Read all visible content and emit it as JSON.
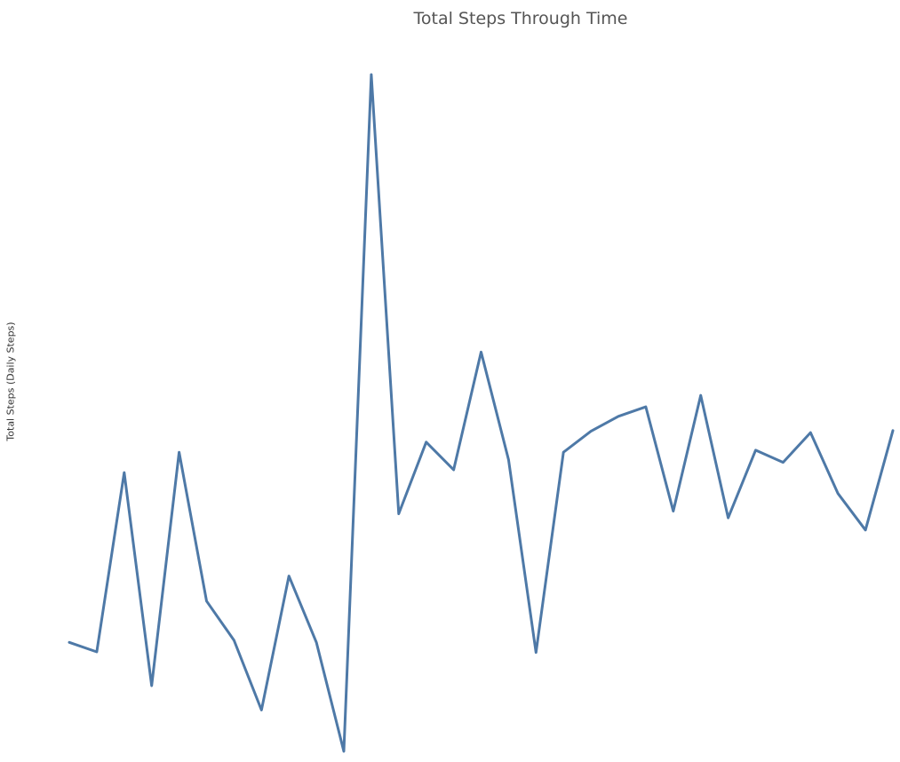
{
  "chart_data": {
    "type": "line",
    "title": "Total Steps Through Time",
    "xlabel": "",
    "ylabel": "Total Steps (Daily Steps)",
    "ylim": [
      0,
      100
    ],
    "grid": false,
    "series": [
      {
        "color": "#4e79a7",
        "values": [
          16.1,
          14.7,
          41.2,
          9.7,
          44.2,
          22.2,
          16.4,
          6.1,
          25.9,
          16.1,
          0,
          100,
          35.1,
          45.7,
          41.6,
          59.0,
          43.1,
          14.6,
          44.2,
          47.3,
          49.5,
          50.9,
          35.5,
          52.6,
          34.5,
          44.5,
          42.7,
          47.1,
          38.1,
          32.7,
          47.4
        ]
      }
    ]
  }
}
